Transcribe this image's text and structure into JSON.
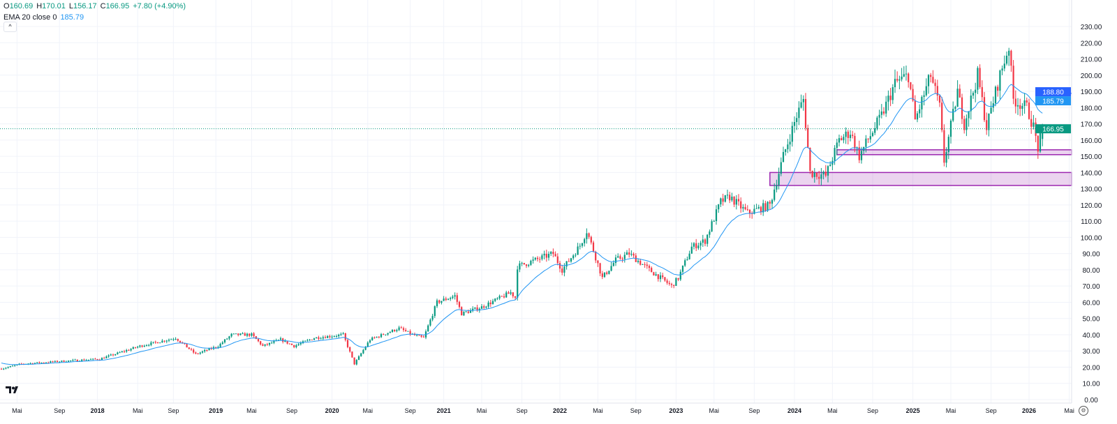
{
  "legend": {
    "o_label": "O",
    "o": "160.69",
    "h_label": "H",
    "h": "170.01",
    "l_label": "L",
    "l": "156.17",
    "c_label": "C",
    "c": "166.95",
    "change": "+7.80 (+4.90%)",
    "ema_name": "EMA 20 close 0",
    "ema_value": "185.79",
    "collapse_icon": "chevron-up-icon"
  },
  "colors": {
    "up": "#089981",
    "down": "#f23645",
    "ema": "#2196f3",
    "zone": "#9c27b0",
    "hline": "#2962ff",
    "grid": "#f0f3fa"
  },
  "chart_data": {
    "type": "candlestick",
    "interval": "weekly",
    "x_unit": "week index",
    "ylim": [
      0,
      235
    ],
    "y_ticks": [
      0,
      10,
      20,
      30,
      40,
      50,
      60,
      70,
      80,
      90,
      100,
      110,
      120,
      130,
      140,
      150,
      160,
      170,
      180,
      190,
      200,
      210,
      220,
      230
    ],
    "x_ticks": [
      {
        "label": "Mai",
        "week": 7,
        "bold": false
      },
      {
        "label": "Sep",
        "week": 26,
        "bold": false
      },
      {
        "label": "2018",
        "week": 43,
        "bold": true
      },
      {
        "label": "Mai",
        "week": 61,
        "bold": false
      },
      {
        "label": "Sep",
        "week": 77,
        "bold": false
      },
      {
        "label": "2019",
        "week": 96,
        "bold": true
      },
      {
        "label": "Mai",
        "week": 112,
        "bold": false
      },
      {
        "label": "Sep",
        "week": 130,
        "bold": false
      },
      {
        "label": "2020",
        "week": 148,
        "bold": true
      },
      {
        "label": "Mai",
        "week": 164,
        "bold": false
      },
      {
        "label": "Sep",
        "week": 183,
        "bold": false
      },
      {
        "label": "2021",
        "week": 198,
        "bold": true
      },
      {
        "label": "Mai",
        "week": 215,
        "bold": false
      },
      {
        "label": "Sep",
        "week": 233,
        "bold": false
      },
      {
        "label": "2022",
        "week": 250,
        "bold": true
      },
      {
        "label": "Mai",
        "week": 267,
        "bold": false
      },
      {
        "label": "Sep",
        "week": 284,
        "bold": false
      },
      {
        "label": "2023",
        "week": 302,
        "bold": true
      },
      {
        "label": "Mai",
        "week": 319,
        "bold": false
      },
      {
        "label": "Sep",
        "week": 337,
        "bold": false
      },
      {
        "label": "2024",
        "week": 355,
        "bold": true
      },
      {
        "label": "Mai",
        "week": 372,
        "bold": false
      },
      {
        "label": "Sep",
        "week": 390,
        "bold": false
      },
      {
        "label": "2025",
        "week": 408,
        "bold": true
      },
      {
        "label": "Mai",
        "week": 425,
        "bold": false
      },
      {
        "label": "Sep",
        "week": 443,
        "bold": false
      },
      {
        "label": "2026",
        "week": 460,
        "bold": true
      },
      {
        "label": "Mai",
        "week": 478,
        "bold": false
      }
    ],
    "price_path": [
      [
        0,
        19
      ],
      [
        9,
        22
      ],
      [
        31,
        24
      ],
      [
        44,
        25
      ],
      [
        62,
        33
      ],
      [
        78,
        38
      ],
      [
        87,
        28
      ],
      [
        97,
        33
      ],
      [
        103,
        40
      ],
      [
        112,
        40
      ],
      [
        117,
        33
      ],
      [
        125,
        37
      ],
      [
        131,
        33
      ],
      [
        140,
        38
      ],
      [
        153,
        40
      ],
      [
        158,
        22
      ],
      [
        165,
        37
      ],
      [
        178,
        44
      ],
      [
        184,
        40
      ],
      [
        189,
        38
      ],
      [
        195,
        60
      ],
      [
        203,
        64
      ],
      [
        206,
        53
      ],
      [
        215,
        57
      ],
      [
        228,
        66
      ],
      [
        230,
        63
      ],
      [
        231,
        82
      ],
      [
        247,
        90
      ],
      [
        251,
        80
      ],
      [
        259,
        95
      ],
      [
        262,
        104
      ],
      [
        265,
        92
      ],
      [
        269,
        75
      ],
      [
        275,
        86
      ],
      [
        281,
        90
      ],
      [
        290,
        80
      ],
      [
        300,
        70
      ],
      [
        303,
        75
      ],
      [
        309,
        94
      ],
      [
        315,
        98
      ],
      [
        322,
        122
      ],
      [
        326,
        125
      ],
      [
        334,
        115
      ],
      [
        344,
        120
      ],
      [
        350,
        150
      ],
      [
        356,
        175
      ],
      [
        359,
        185
      ],
      [
        362,
        140
      ],
      [
        369,
        138
      ],
      [
        375,
        160
      ],
      [
        380,
        165
      ],
      [
        384,
        150
      ],
      [
        387,
        158
      ],
      [
        394,
        175
      ],
      [
        400,
        195
      ],
      [
        406,
        200
      ],
      [
        409,
        172
      ],
      [
        416,
        200
      ],
      [
        420,
        180
      ],
      [
        422,
        147
      ],
      [
        428,
        190
      ],
      [
        431,
        170
      ],
      [
        437,
        200
      ],
      [
        441,
        168
      ],
      [
        447,
        200
      ],
      [
        451,
        218
      ],
      [
        453,
        185
      ],
      [
        459,
        180
      ],
      [
        462,
        168
      ],
      [
        464,
        155
      ],
      [
        466,
        167
      ]
    ],
    "last_candle": {
      "open": 160.69,
      "high": 170.01,
      "low": 156.17,
      "close": 166.95
    },
    "ema": {
      "period": 20,
      "source": "close",
      "last": 185.79
    },
    "horizontal_line": {
      "price": 188.8,
      "label": "188.80"
    },
    "ema_label": "185.79",
    "last_price_label": "166.95",
    "zones": [
      {
        "from": 151,
        "to": 154,
        "start_week": 374
      },
      {
        "from": 132,
        "to": 140,
        "start_week": 344
      }
    ]
  },
  "footer": {
    "logo": "TV",
    "settings_icon": "gear-icon"
  }
}
